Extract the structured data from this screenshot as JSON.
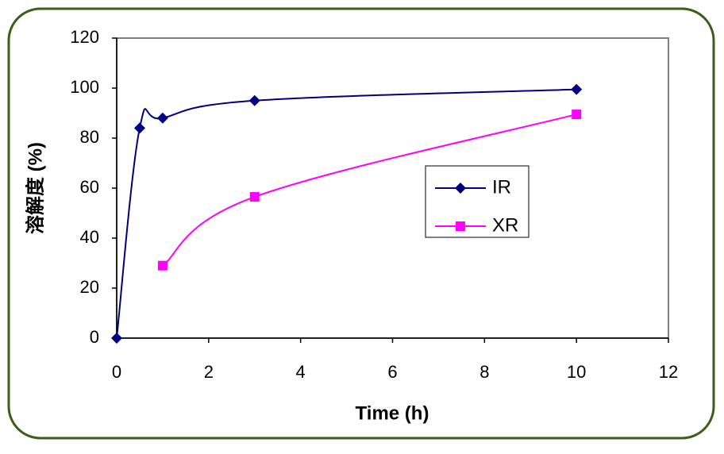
{
  "chart_data": {
    "type": "line",
    "x_label": "Time (h)",
    "y_label": "溶解度 (%)",
    "xlim": [
      0,
      12
    ],
    "xticks": [
      0,
      2,
      4,
      6,
      8,
      10,
      12
    ],
    "ylim": [
      0,
      120
    ],
    "yticks": [
      0,
      20,
      40,
      60,
      80,
      100,
      120
    ],
    "legend": "right",
    "series": [
      {
        "name": "IR",
        "color": "#000080",
        "marker": "diamond",
        "x": [
          0,
          0.5,
          1,
          3,
          10
        ],
        "values": [
          0,
          84,
          88,
          95,
          99.5
        ]
      },
      {
        "name": "XR",
        "color": "#ff00ff",
        "marker": "square",
        "x": [
          1,
          3,
          10
        ],
        "values": [
          29,
          56.5,
          89.5
        ]
      }
    ]
  }
}
